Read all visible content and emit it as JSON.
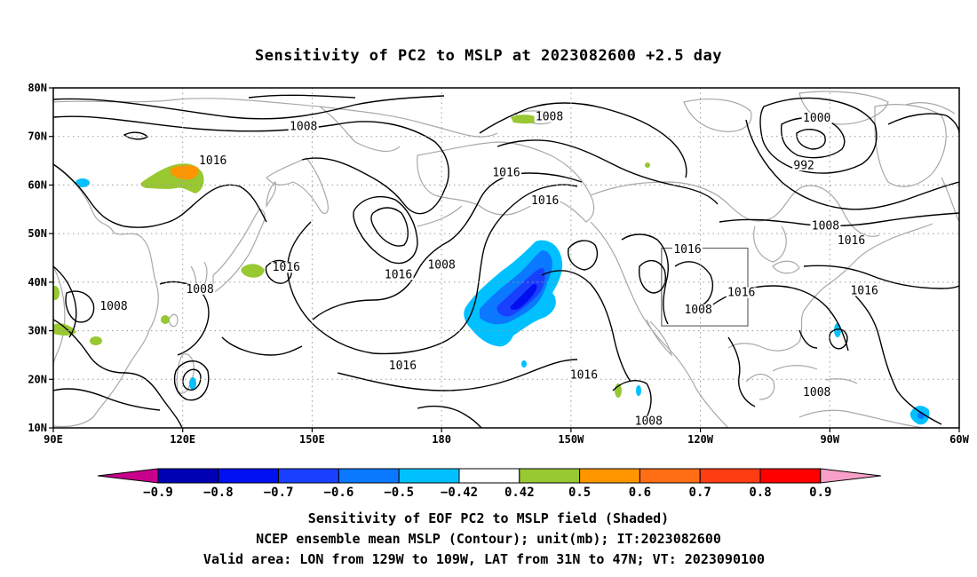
{
  "title": "Sensitivity of PC2 to MSLP at 2023082600 +2.5 day",
  "map": {
    "lon_ticks": [
      "90E",
      "120E",
      "150E",
      "180",
      "150W",
      "120W",
      "90W",
      "60W"
    ],
    "lat_ticks": [
      "80N",
      "70N",
      "60N",
      "50N",
      "40N",
      "30N",
      "20N",
      "10N"
    ],
    "lon_range": [
      90,
      300
    ],
    "lat_range": [
      10,
      80
    ],
    "grid": "dotted",
    "coastline_color": "#a8a8a8",
    "valid_box": {
      "lon": [
        231,
        251
      ],
      "lat": [
        31,
        47
      ]
    }
  },
  "contour_labels": [
    {
      "text": "1008",
      "lon": 148,
      "lat": 71.5
    },
    {
      "text": "1008",
      "lon": 205,
      "lat": 73.5
    },
    {
      "text": "1000",
      "lon": 267,
      "lat": 73.2
    },
    {
      "text": "992",
      "lon": 264,
      "lat": 63.5
    },
    {
      "text": "1016",
      "lon": 127,
      "lat": 64.5
    },
    {
      "text": "1016",
      "lon": 195,
      "lat": 62
    },
    {
      "text": "1016",
      "lon": 204,
      "lat": 56.2
    },
    {
      "text": "1008",
      "lon": 269,
      "lat": 51
    },
    {
      "text": "1016",
      "lon": 275,
      "lat": 48
    },
    {
      "text": "1016",
      "lon": 144,
      "lat": 42.5
    },
    {
      "text": "1016",
      "lon": 170,
      "lat": 41
    },
    {
      "text": "1008",
      "lon": 180,
      "lat": 43
    },
    {
      "text": "1016",
      "lon": 237,
      "lat": 46.2
    },
    {
      "text": "1008",
      "lon": 124,
      "lat": 38
    },
    {
      "text": "1008",
      "lon": 104,
      "lat": 34.5
    },
    {
      "text": "1016",
      "lon": 249.5,
      "lat": 37.3
    },
    {
      "text": "1016",
      "lon": 278,
      "lat": 37.7
    },
    {
      "text": "1008",
      "lon": 239.5,
      "lat": 33.8
    },
    {
      "text": "1016",
      "lon": 171,
      "lat": 22.2
    },
    {
      "text": "1016",
      "lon": 213,
      "lat": 20.3
    },
    {
      "text": "1008",
      "lon": 267,
      "lat": 16.8
    },
    {
      "text": "1008",
      "lon": 228,
      "lat": 10.8
    }
  ],
  "colorbar": {
    "labels": [
      "−0.9",
      "−0.8",
      "−0.7",
      "−0.6",
      "−0.5",
      "−0.42",
      "0.42",
      "0.5",
      "0.6",
      "0.7",
      "0.8",
      "0.9"
    ],
    "left_arrow_color": "#c8008c",
    "right_arrow_color": "#f8a0c8",
    "colors": [
      "#0000b4",
      "#0010f0",
      "#1a40ff",
      "#0a78ff",
      "#00c0ff",
      "#ffffff",
      "#98c832",
      "#ff9600",
      "#ff6e14",
      "#ff3c14",
      "#ff0000"
    ]
  },
  "footer": [
    "Sensitivity of EOF PC2 to MSLP field (Shaded)",
    "NCEP ensemble mean MSLP (Contour); unit(mb); IT:2023082600",
    "Valid area: LON from 129W to 109W, LAT from 31N to 47N; VT: 2023090100"
  ]
}
